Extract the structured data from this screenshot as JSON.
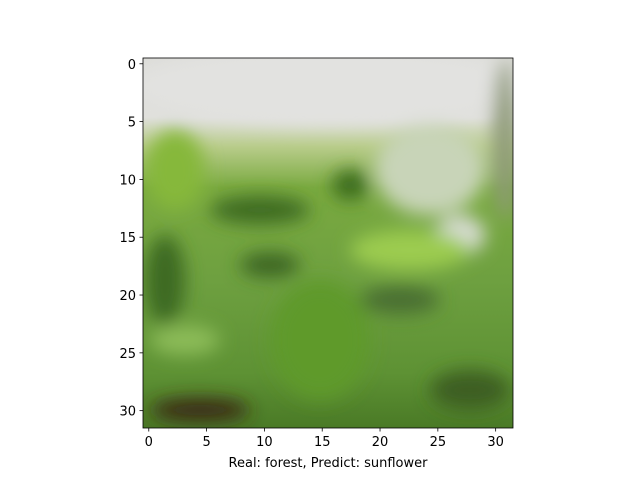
{
  "chart_data": {
    "type": "image",
    "xlabel": "Real: forest, Predict: sunflower",
    "xlim": [
      -0.5,
      31.5
    ],
    "ylim": [
      31.5,
      -0.5
    ],
    "xticks": [
      0,
      5,
      10,
      15,
      20,
      25,
      30
    ],
    "yticks": [
      0,
      5,
      10,
      15,
      20,
      25,
      30
    ]
  }
}
